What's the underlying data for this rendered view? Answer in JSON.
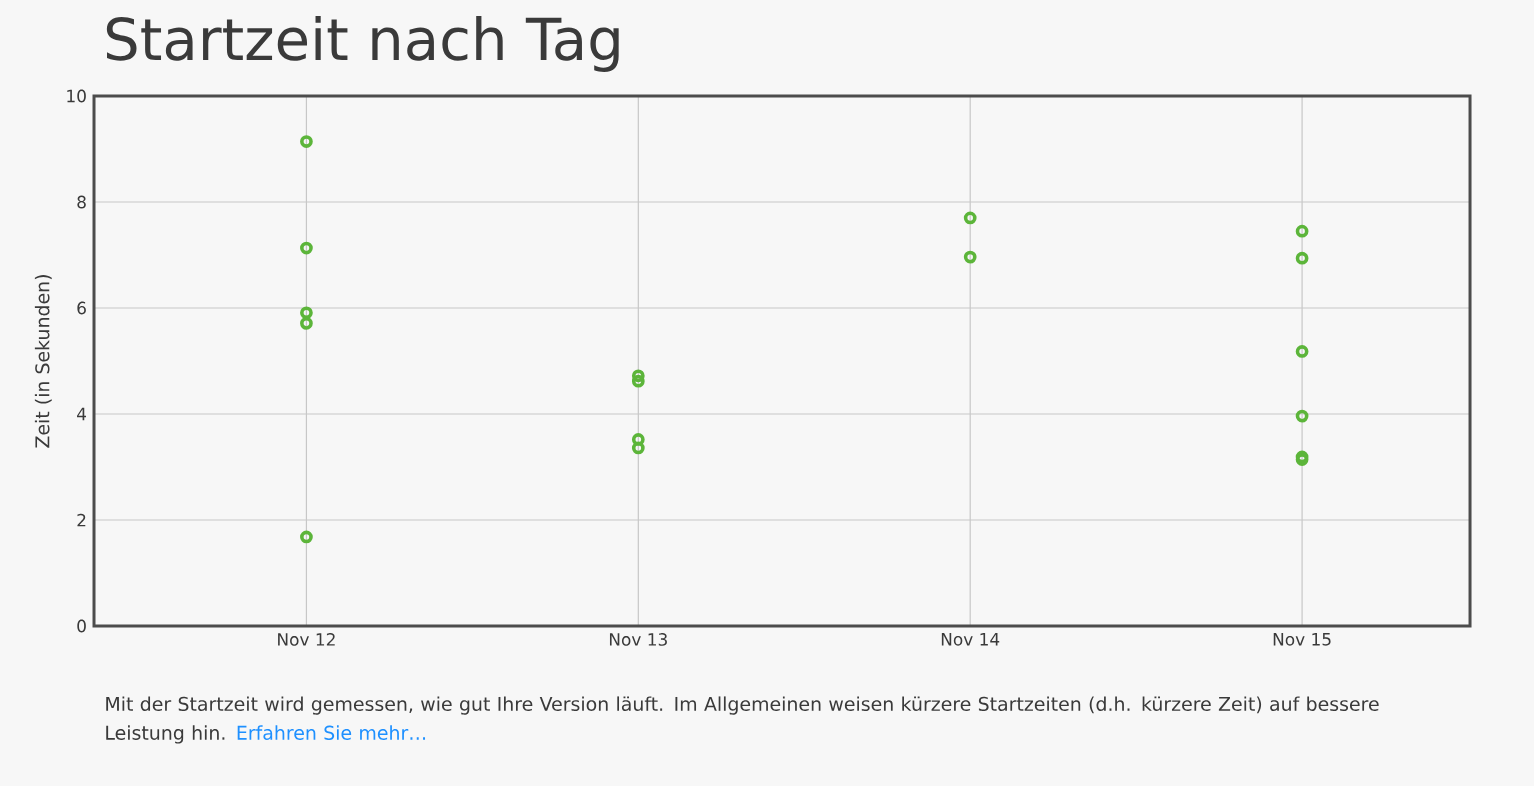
{
  "chart_data": {
    "type": "scatter",
    "title": "Startzeit nach Tag",
    "ylabel": "Zeit (in Sekunden)",
    "categories": [
      "Nov 12",
      "Nov 13",
      "Nov 14",
      "Nov 15"
    ],
    "series": [
      {
        "color": "#5cb53a",
        "x": [
          "Nov 12",
          "Nov 12",
          "Nov 12",
          "Nov 12",
          "Nov 12",
          "Nov 13",
          "Nov 13",
          "Nov 13",
          "Nov 13",
          "Nov 14",
          "Nov 14",
          "Nov 15",
          "Nov 15",
          "Nov 15",
          "Nov 15",
          "Nov 15",
          "Nov 15"
        ],
        "values": [
          9.14,
          7.13,
          5.91,
          5.71,
          1.68,
          4.72,
          4.62,
          3.52,
          3.36,
          7.7,
          6.96,
          7.45,
          6.94,
          5.18,
          3.96,
          3.19,
          3.14
        ]
      }
    ],
    "ylim": [
      0,
      10
    ],
    "yticks": [
      0,
      2,
      4,
      6,
      8,
      10
    ],
    "grid": true,
    "marker": "circle",
    "annotations": [
      "Mit der Startzeit wird gemessen, wie gut Ihre Version läuft. Im Allgemeinen weisen kürzere Startzeiten (d.h. kürzere Zeit) auf bessere Leistung hin.",
      "Erfahren Sie mehr…"
    ]
  }
}
